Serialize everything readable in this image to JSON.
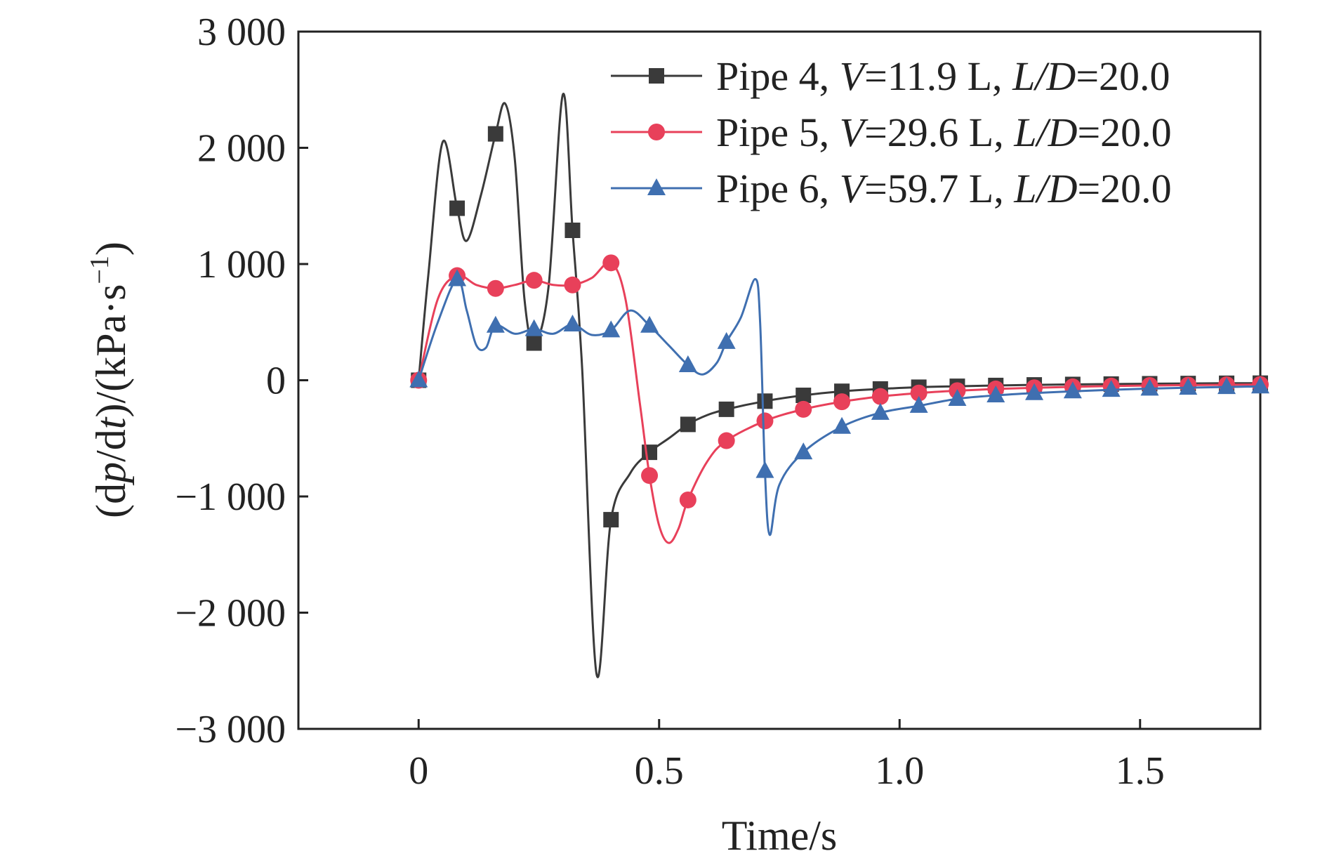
{
  "chart_data": {
    "type": "line",
    "xlabel": "Time/s",
    "ylabel": {
      "prefix": "(d",
      "p": "p",
      "mid": "/d",
      "t": "t",
      "suffix": ")/(kPa·s",
      "sup": "−1",
      "close": ")"
    },
    "xlim": [
      -0.25,
      1.75
    ],
    "ylim": [
      -3000,
      3000
    ],
    "x_ticks": [
      0,
      0.5,
      1.0,
      1.5
    ],
    "x_tick_labels": [
      "0",
      "0.5",
      "1.0",
      "1.5"
    ],
    "y_ticks": [
      3000,
      2000,
      1000,
      0,
      -1000,
      -2000,
      -3000
    ],
    "y_tick_labels": [
      "3 000",
      "2 000",
      "1 000",
      "0",
      "−1 000",
      "−2 000",
      "−3 000"
    ],
    "grid": false,
    "legend_position": "top-right",
    "series": [
      {
        "name": "Pipe 4, V=11.9 L, L/D=20.0",
        "legend": {
          "pre": "Pipe 4, ",
          "v": "V",
          "vval": "=11.9 L, ",
          "ld": "L/D",
          "ldval": "=20.0"
        },
        "color": "#3a3a3a",
        "marker": "square",
        "curve": [
          [
            0.0,
            0
          ],
          [
            0.02,
            900
          ],
          [
            0.05,
            2050
          ],
          [
            0.08,
            1480
          ],
          [
            0.1,
            1200
          ],
          [
            0.13,
            1600
          ],
          [
            0.16,
            2120
          ],
          [
            0.18,
            2380
          ],
          [
            0.2,
            1900
          ],
          [
            0.22,
            700
          ],
          [
            0.24,
            320
          ],
          [
            0.27,
            800
          ],
          [
            0.3,
            2460
          ],
          [
            0.32,
            1290
          ],
          [
            0.34,
            100
          ],
          [
            0.37,
            -2530
          ],
          [
            0.4,
            -1200
          ],
          [
            0.44,
            -800
          ],
          [
            0.48,
            -620
          ],
          [
            0.52,
            -500
          ],
          [
            0.56,
            -380
          ],
          [
            0.6,
            -300
          ],
          [
            0.64,
            -250
          ],
          [
            0.72,
            -180
          ],
          [
            0.8,
            -130
          ],
          [
            0.88,
            -95
          ],
          [
            0.96,
            -75
          ],
          [
            1.04,
            -60
          ],
          [
            1.12,
            -52
          ],
          [
            1.2,
            -45
          ],
          [
            1.28,
            -40
          ],
          [
            1.36,
            -36
          ],
          [
            1.44,
            -33
          ],
          [
            1.52,
            -30
          ],
          [
            1.6,
            -28
          ],
          [
            1.68,
            -26
          ],
          [
            1.75,
            -25
          ]
        ],
        "markers": [
          [
            0.0,
            0
          ],
          [
            0.08,
            1480
          ],
          [
            0.16,
            2120
          ],
          [
            0.24,
            320
          ],
          [
            0.32,
            1290
          ],
          [
            0.4,
            -1200
          ],
          [
            0.48,
            -620
          ],
          [
            0.56,
            -380
          ],
          [
            0.64,
            -250
          ],
          [
            0.72,
            -180
          ],
          [
            0.8,
            -130
          ],
          [
            0.88,
            -95
          ],
          [
            0.96,
            -75
          ],
          [
            1.04,
            -60
          ],
          [
            1.12,
            -52
          ],
          [
            1.2,
            -45
          ],
          [
            1.28,
            -40
          ],
          [
            1.36,
            -36
          ],
          [
            1.44,
            -33
          ],
          [
            1.52,
            -30
          ],
          [
            1.6,
            -28
          ],
          [
            1.68,
            -26
          ],
          [
            1.75,
            -25
          ]
        ]
      },
      {
        "name": "Pipe 5, V=29.6 L, L/D=20.0",
        "legend": {
          "pre": "Pipe 5, ",
          "v": "V",
          "vval": "=29.6 L, ",
          "ld": "L/D",
          "ldval": "=20.0"
        },
        "color": "#e8405a",
        "marker": "circle",
        "curve": [
          [
            0.0,
            0
          ],
          [
            0.04,
            700
          ],
          [
            0.08,
            900
          ],
          [
            0.12,
            820
          ],
          [
            0.16,
            790
          ],
          [
            0.2,
            820
          ],
          [
            0.24,
            860
          ],
          [
            0.28,
            820
          ],
          [
            0.32,
            820
          ],
          [
            0.36,
            880
          ],
          [
            0.4,
            1010
          ],
          [
            0.43,
            700
          ],
          [
            0.46,
            -200
          ],
          [
            0.48,
            -820
          ],
          [
            0.5,
            -1250
          ],
          [
            0.52,
            -1400
          ],
          [
            0.54,
            -1280
          ],
          [
            0.56,
            -1030
          ],
          [
            0.6,
            -700
          ],
          [
            0.64,
            -520
          ],
          [
            0.72,
            -350
          ],
          [
            0.8,
            -250
          ],
          [
            0.88,
            -185
          ],
          [
            0.96,
            -140
          ],
          [
            1.04,
            -110
          ],
          [
            1.12,
            -90
          ],
          [
            1.2,
            -75
          ],
          [
            1.28,
            -65
          ],
          [
            1.36,
            -57
          ],
          [
            1.44,
            -50
          ],
          [
            1.52,
            -45
          ],
          [
            1.6,
            -42
          ],
          [
            1.68,
            -39
          ],
          [
            1.75,
            -37
          ]
        ],
        "markers": [
          [
            0.0,
            0
          ],
          [
            0.08,
            900
          ],
          [
            0.16,
            790
          ],
          [
            0.24,
            860
          ],
          [
            0.32,
            820
          ],
          [
            0.4,
            1010
          ],
          [
            0.48,
            -820
          ],
          [
            0.56,
            -1030
          ],
          [
            0.64,
            -520
          ],
          [
            0.72,
            -350
          ],
          [
            0.8,
            -250
          ],
          [
            0.88,
            -185
          ],
          [
            0.96,
            -140
          ],
          [
            1.04,
            -110
          ],
          [
            1.12,
            -90
          ],
          [
            1.2,
            -75
          ],
          [
            1.28,
            -65
          ],
          [
            1.36,
            -57
          ],
          [
            1.44,
            -50
          ],
          [
            1.52,
            -45
          ],
          [
            1.6,
            -42
          ],
          [
            1.68,
            -39
          ],
          [
            1.75,
            -37
          ]
        ]
      },
      {
        "name": "Pipe 6, V=59.7 L, L/D=20.0",
        "legend": {
          "pre": "Pipe 6, ",
          "v": "V",
          "vval": "=59.7 L, ",
          "ld": "L/D",
          "ldval": "=20.0"
        },
        "color": "#3f6fb0",
        "marker": "triangle",
        "curve": [
          [
            0.0,
            0
          ],
          [
            0.04,
            500
          ],
          [
            0.08,
            870
          ],
          [
            0.1,
            600
          ],
          [
            0.12,
            300
          ],
          [
            0.14,
            280
          ],
          [
            0.16,
            470
          ],
          [
            0.2,
            400
          ],
          [
            0.24,
            440
          ],
          [
            0.28,
            400
          ],
          [
            0.32,
            480
          ],
          [
            0.36,
            390
          ],
          [
            0.4,
            430
          ],
          [
            0.44,
            600
          ],
          [
            0.48,
            470
          ],
          [
            0.52,
            300
          ],
          [
            0.56,
            130
          ],
          [
            0.59,
            50
          ],
          [
            0.62,
            150
          ],
          [
            0.64,
            330
          ],
          [
            0.67,
            540
          ],
          [
            0.7,
            870
          ],
          [
            0.71,
            500
          ],
          [
            0.72,
            -780
          ],
          [
            0.73,
            -1330
          ],
          [
            0.75,
            -900
          ],
          [
            0.8,
            -620
          ],
          [
            0.88,
            -400
          ],
          [
            0.96,
            -280
          ],
          [
            1.04,
            -220
          ],
          [
            1.12,
            -160
          ],
          [
            1.2,
            -130
          ],
          [
            1.28,
            -110
          ],
          [
            1.36,
            -95
          ],
          [
            1.44,
            -82
          ],
          [
            1.52,
            -72
          ],
          [
            1.6,
            -64
          ],
          [
            1.68,
            -58
          ],
          [
            1.75,
            -53
          ]
        ],
        "markers": [
          [
            0.0,
            0
          ],
          [
            0.08,
            870
          ],
          [
            0.16,
            470
          ],
          [
            0.24,
            440
          ],
          [
            0.32,
            480
          ],
          [
            0.4,
            430
          ],
          [
            0.48,
            470
          ],
          [
            0.56,
            130
          ],
          [
            0.64,
            330
          ],
          [
            0.72,
            -780
          ],
          [
            0.8,
            -620
          ],
          [
            0.88,
            -400
          ],
          [
            0.96,
            -280
          ],
          [
            1.04,
            -220
          ],
          [
            1.12,
            -160
          ],
          [
            1.2,
            -130
          ],
          [
            1.28,
            -110
          ],
          [
            1.36,
            -95
          ],
          [
            1.44,
            -82
          ],
          [
            1.52,
            -72
          ],
          [
            1.6,
            -64
          ],
          [
            1.68,
            -58
          ],
          [
            1.75,
            -53
          ]
        ]
      }
    ]
  }
}
